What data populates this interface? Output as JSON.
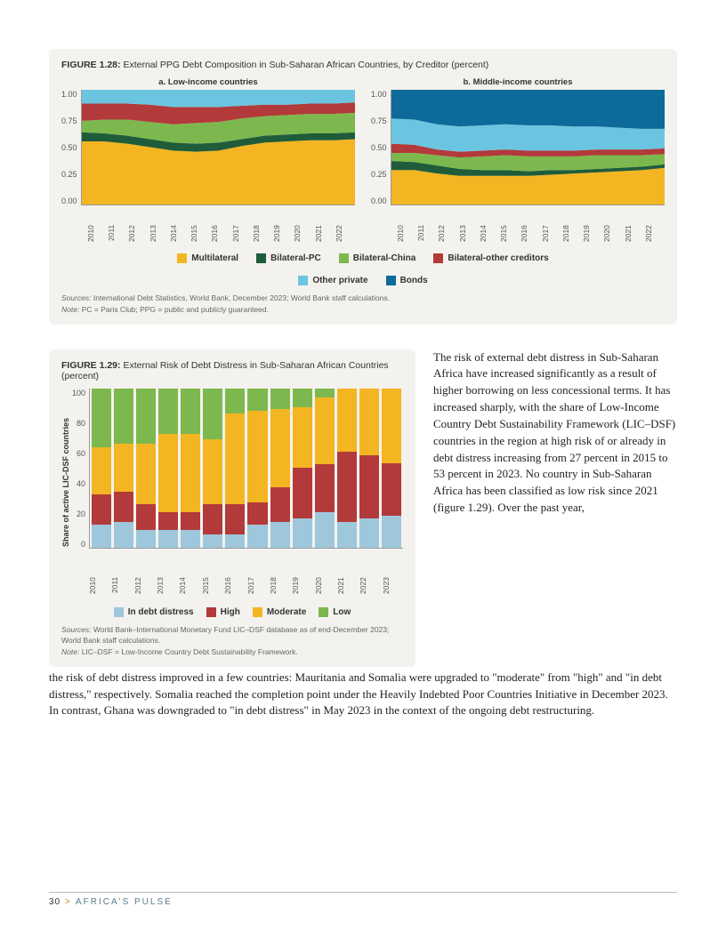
{
  "figure128": {
    "title_prefix": "FIGURE 1.28:",
    "title_text": " External PPG Debt Composition in Sub-Saharan African Countries, by Creditor (percent)",
    "panel_a_title": "a. Low-income countries",
    "panel_b_title": "b. Middle-income countries",
    "y_ticks": [
      "1.00",
      "0.75",
      "0.50",
      "0.25",
      "0.00"
    ],
    "years": [
      "2010",
      "2011",
      "2012",
      "2013",
      "2014",
      "2015",
      "2016",
      "2017",
      "2018",
      "2019",
      "2020",
      "2021",
      "2022"
    ],
    "colors": {
      "multilateral": "#f3b522",
      "bilateral_pc": "#1f5c3a",
      "bilateral_china": "#7db84e",
      "bilateral_other": "#b23a3a",
      "other_private": "#6bc5e0",
      "bonds": "#0e6a9b"
    },
    "panel_a": {
      "multilateral": [
        0.55,
        0.55,
        0.53,
        0.5,
        0.47,
        0.46,
        0.47,
        0.51,
        0.54,
        0.55,
        0.56,
        0.56,
        0.57
      ],
      "bilateral_pc": [
        0.08,
        0.07,
        0.07,
        0.07,
        0.07,
        0.07,
        0.07,
        0.06,
        0.06,
        0.06,
        0.06,
        0.06,
        0.06
      ],
      "bilateral_china": [
        0.1,
        0.12,
        0.14,
        0.15,
        0.16,
        0.18,
        0.18,
        0.18,
        0.17,
        0.17,
        0.17,
        0.17,
        0.17
      ],
      "bilateral_other": [
        0.15,
        0.14,
        0.14,
        0.15,
        0.15,
        0.14,
        0.13,
        0.11,
        0.1,
        0.09,
        0.09,
        0.09,
        0.09
      ],
      "other_private": [
        0.12,
        0.12,
        0.12,
        0.13,
        0.15,
        0.15,
        0.15,
        0.14,
        0.13,
        0.13,
        0.12,
        0.12,
        0.11
      ],
      "bonds": [
        0.0,
        0.0,
        0.0,
        0.0,
        0.0,
        0.0,
        0.0,
        0.0,
        0.0,
        0.0,
        0.0,
        0.0,
        0.0
      ]
    },
    "panel_b": {
      "multilateral": [
        0.3,
        0.3,
        0.27,
        0.25,
        0.25,
        0.25,
        0.25,
        0.26,
        0.27,
        0.28,
        0.29,
        0.3,
        0.32
      ],
      "bilateral_pc": [
        0.08,
        0.07,
        0.07,
        0.06,
        0.05,
        0.05,
        0.04,
        0.04,
        0.03,
        0.03,
        0.03,
        0.03,
        0.03
      ],
      "bilateral_china": [
        0.07,
        0.08,
        0.09,
        0.1,
        0.12,
        0.13,
        0.13,
        0.12,
        0.12,
        0.12,
        0.11,
        0.1,
        0.09
      ],
      "bilateral_other": [
        0.08,
        0.07,
        0.05,
        0.05,
        0.05,
        0.05,
        0.05,
        0.05,
        0.05,
        0.05,
        0.05,
        0.05,
        0.05
      ],
      "other_private": [
        0.22,
        0.22,
        0.22,
        0.22,
        0.22,
        0.22,
        0.22,
        0.22,
        0.21,
        0.2,
        0.19,
        0.18,
        0.17
      ],
      "bonds": [
        0.25,
        0.26,
        0.3,
        0.32,
        0.31,
        0.3,
        0.31,
        0.31,
        0.32,
        0.32,
        0.33,
        0.34,
        0.34
      ]
    },
    "legend": [
      "Multilateral",
      "Bilateral-PC",
      "Bilateral-China",
      "Bilateral-other creditors",
      "Other private",
      "Bonds"
    ],
    "sources": "Sources: International Debt Statistics, World Bank, December 2023; World Bank staff calculations.",
    "note": "Note: PC = Paris Club; PPG = public and publicly guaranteed."
  },
  "figure129": {
    "title_prefix": "FIGURE 1.29:",
    "title_text": " External Risk of Debt Distress in Sub-Saharan African Countries (percent)",
    "y_label": "Share of active LIC-DSF countries",
    "y_ticks": [
      "100",
      "80",
      "60",
      "40",
      "20",
      "0"
    ],
    "years": [
      "2010",
      "2011",
      "2012",
      "2013",
      "2014",
      "2015",
      "2016",
      "2017",
      "2018",
      "2019",
      "2020",
      "2021",
      "2022",
      "2023"
    ],
    "colors": {
      "in_distress": "#9fc7dc",
      "high": "#b23a3a",
      "moderate": "#f3b522",
      "low": "#7db84e"
    },
    "data": {
      "in_distress": [
        14,
        16,
        11,
        11,
        11,
        8,
        8,
        14,
        16,
        18,
        22,
        16,
        18,
        20
      ],
      "high": [
        19,
        19,
        16,
        11,
        11,
        19,
        19,
        14,
        22,
        32,
        30,
        44,
        40,
        33
      ],
      "moderate": [
        30,
        30,
        38,
        49,
        49,
        41,
        57,
        58,
        49,
        38,
        42,
        40,
        42,
        47
      ],
      "low": [
        37,
        35,
        35,
        29,
        29,
        32,
        16,
        14,
        13,
        12,
        6,
        0,
        0,
        0
      ]
    },
    "legend": [
      "In debt distress",
      "High",
      "Moderate",
      "Low"
    ],
    "sources": "Sources: World Bank–International Monetary Fund LIC–DSF database as of end-December 2023; World Bank staff calculations.",
    "note": "Note: LIC–DSF = Low-Income Country Debt Sustainability Framework."
  },
  "body_text_side": "The risk of external debt distress  in Sub-Saharan Africa have increased significantly as a result of higher borrowing on less concessional terms. It has increased sharply, with the share of Low-Income Country Debt Sustainability Framework (LIC–DSF) countries in the region at high risk of or already in debt distress increasing from 27 percent in 2015 to 53 percent in 2023. No country in Sub-Saharan Africa has been classified as low risk since 2021 (figure 1.29). Over the past year,",
  "body_text_cont": "the risk of debt distress improved in a few countries: Mauritania and Somalia were upgraded to \"moderate\" from \"high\" and \"in debt distress,\" respectively. Somalia reached the completion point under the Heavily Indebted Poor Countries Initiative in December 2023. In contrast, Ghana was downgraded to \"in debt distress\" in May 2023 in the context of the ongoing debt restructuring.",
  "footer": {
    "page": "30",
    "arrow": ">",
    "title": "AFRICA'S PULSE"
  }
}
